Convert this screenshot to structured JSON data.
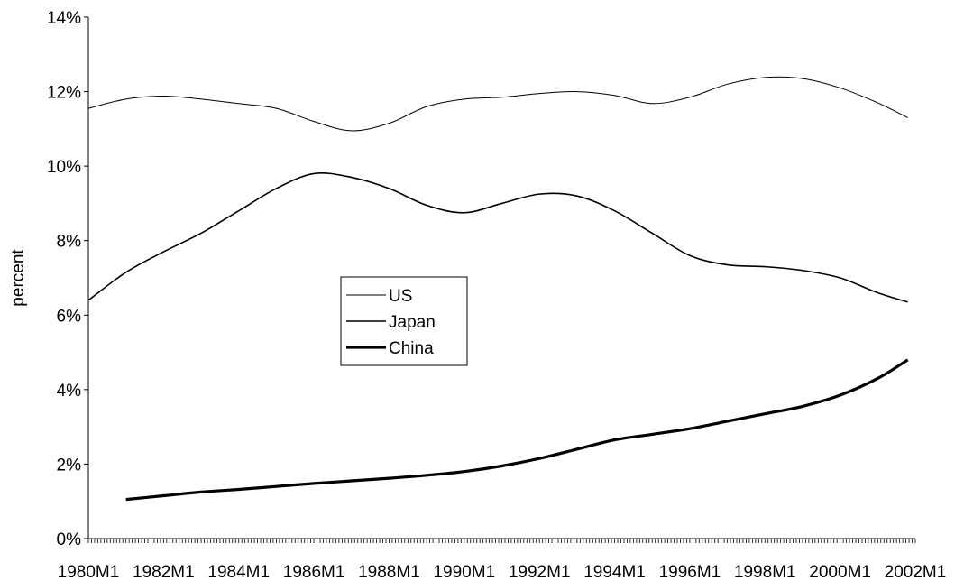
{
  "chart_data": {
    "type": "line",
    "title": "",
    "xlabel": "",
    "ylabel": "percent",
    "ylim": [
      0,
      14
    ],
    "yticks": [
      "0%",
      "2%",
      "4%",
      "6%",
      "8%",
      "10%",
      "12%",
      "14%"
    ],
    "x_tick_labels": [
      "1980M1",
      "1982M1",
      "1984M1",
      "1986M1",
      "1988M1",
      "1990M1",
      "1992M1",
      "1994M1",
      "1996M1",
      "1998M1",
      "2000M1",
      "2002M1"
    ],
    "x_range": [
      1980.0,
      2002.0
    ],
    "legend_position": "center-left",
    "grid": false,
    "series": [
      {
        "name": "US",
        "line": "thin",
        "x": [
          1980.0,
          1981.0,
          1982.0,
          1983.0,
          1984.0,
          1985.0,
          1986.0,
          1987.0,
          1988.0,
          1989.0,
          1990.0,
          1991.0,
          1992.0,
          1993.0,
          1994.0,
          1995.0,
          1996.0,
          1997.0,
          1998.0,
          1999.0,
          2000.0,
          2001.0,
          2001.8
        ],
        "values": [
          11.55,
          11.8,
          11.88,
          11.8,
          11.68,
          11.55,
          11.2,
          10.95,
          11.15,
          11.6,
          11.8,
          11.85,
          11.95,
          12.0,
          11.9,
          11.68,
          11.85,
          12.2,
          12.38,
          12.35,
          12.1,
          11.7,
          11.3
        ]
      },
      {
        "name": "Japan",
        "line": "medium",
        "x": [
          1980.0,
          1981.0,
          1982.0,
          1983.0,
          1984.0,
          1985.0,
          1986.0,
          1987.0,
          1988.0,
          1989.0,
          1990.0,
          1991.0,
          1992.0,
          1993.0,
          1994.0,
          1995.0,
          1996.0,
          1997.0,
          1998.0,
          1999.0,
          2000.0,
          2001.0,
          2001.8
        ],
        "values": [
          6.4,
          7.15,
          7.7,
          8.2,
          8.8,
          9.4,
          9.8,
          9.7,
          9.4,
          8.95,
          8.75,
          9.0,
          9.25,
          9.2,
          8.8,
          8.2,
          7.6,
          7.35,
          7.3,
          7.2,
          7.0,
          6.6,
          6.35
        ]
      },
      {
        "name": "China",
        "line": "thick",
        "x": [
          1981.0,
          1982.0,
          1983.0,
          1984.0,
          1985.0,
          1986.0,
          1987.0,
          1988.0,
          1989.0,
          1990.0,
          1991.0,
          1992.0,
          1993.0,
          1994.0,
          1995.0,
          1996.0,
          1997.0,
          1998.0,
          1999.0,
          2000.0,
          2001.0,
          2001.8
        ],
        "values": [
          1.05,
          1.15,
          1.25,
          1.32,
          1.4,
          1.48,
          1.55,
          1.62,
          1.7,
          1.8,
          1.95,
          2.15,
          2.4,
          2.65,
          2.8,
          2.95,
          3.15,
          3.35,
          3.55,
          3.85,
          4.3,
          4.8
        ]
      }
    ]
  }
}
